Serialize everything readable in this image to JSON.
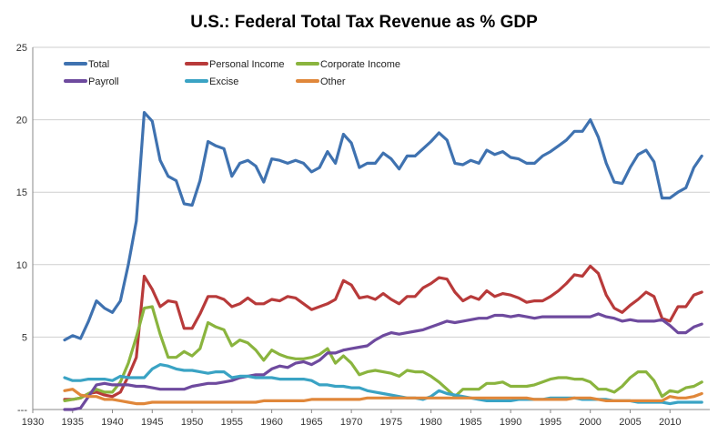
{
  "chart_data": {
    "type": "line",
    "title": "U.S.: Federal Total Tax Revenue as % GDP",
    "xlabel": "",
    "ylabel": "",
    "xlim": [
      1930,
      2015
    ],
    "ylim": [
      0,
      25
    ],
    "x_ticks": [
      1930,
      1935,
      1940,
      1945,
      1950,
      1955,
      1960,
      1965,
      1970,
      1975,
      1980,
      1985,
      1990,
      1995,
      2000,
      2005,
      2010
    ],
    "y_ticks": [
      0,
      5,
      10,
      15,
      20,
      25
    ],
    "y_tick_labels": [
      "---",
      "5",
      "10",
      "15",
      "20",
      "25"
    ],
    "grid": "horizontal",
    "legend_position": "top",
    "x": [
      1934,
      1935,
      1936,
      1937,
      1938,
      1939,
      1940,
      1941,
      1942,
      1943,
      1944,
      1945,
      1946,
      1947,
      1948,
      1949,
      1950,
      1951,
      1952,
      1953,
      1954,
      1955,
      1956,
      1957,
      1958,
      1959,
      1960,
      1961,
      1962,
      1963,
      1964,
      1965,
      1966,
      1967,
      1968,
      1969,
      1970,
      1971,
      1972,
      1973,
      1974,
      1975,
      1976,
      1977,
      1978,
      1979,
      1980,
      1981,
      1982,
      1983,
      1984,
      1985,
      1986,
      1987,
      1988,
      1989,
      1990,
      1991,
      1992,
      1993,
      1994,
      1995,
      1996,
      1997,
      1998,
      1999,
      2000,
      2001,
      2002,
      2003,
      2004,
      2005,
      2006,
      2007,
      2008,
      2009,
      2010,
      2011,
      2012,
      2013,
      2014
    ],
    "series": [
      {
        "name": "Total",
        "color": "#3f72b0",
        "values": [
          4.8,
          5.1,
          4.9,
          6.1,
          7.5,
          7.0,
          6.7,
          7.5,
          10.0,
          13.0,
          20.5,
          19.9,
          17.2,
          16.1,
          15.8,
          14.2,
          14.1,
          15.8,
          18.5,
          18.2,
          18.0,
          16.1,
          17.0,
          17.2,
          16.8,
          15.7,
          17.3,
          17.2,
          17.0,
          17.2,
          17.0,
          16.4,
          16.7,
          17.8,
          17.0,
          19.0,
          18.4,
          16.7,
          17.0,
          17.0,
          17.7,
          17.3,
          16.6,
          17.5,
          17.5,
          18.0,
          18.5,
          19.1,
          18.6,
          17.0,
          16.9,
          17.2,
          17.0,
          17.9,
          17.6,
          17.8,
          17.4,
          17.3,
          17.0,
          17.0,
          17.5,
          17.8,
          18.2,
          18.6,
          19.2,
          19.2,
          20.0,
          18.8,
          17.0,
          15.7,
          15.6,
          16.7,
          17.6,
          17.9,
          17.1,
          14.6,
          14.6,
          15.0,
          15.3,
          16.7,
          17.5
        ]
      },
      {
        "name": "Personal Income",
        "color": "#b83a3a",
        "values": [
          0.7,
          0.7,
          0.8,
          1.1,
          1.2,
          1.0,
          0.9,
          1.2,
          2.3,
          3.6,
          9.2,
          8.3,
          7.1,
          7.5,
          7.4,
          5.6,
          5.6,
          6.6,
          7.8,
          7.8,
          7.6,
          7.1,
          7.3,
          7.7,
          7.3,
          7.3,
          7.6,
          7.5,
          7.8,
          7.7,
          7.3,
          6.9,
          7.1,
          7.3,
          7.6,
          8.9,
          8.6,
          7.7,
          7.8,
          7.6,
          8.0,
          7.6,
          7.3,
          7.8,
          7.8,
          8.4,
          8.7,
          9.1,
          9.0,
          8.1,
          7.5,
          7.8,
          7.6,
          8.2,
          7.8,
          8.0,
          7.9,
          7.7,
          7.4,
          7.5,
          7.5,
          7.8,
          8.2,
          8.7,
          9.3,
          9.2,
          9.9,
          9.4,
          7.9,
          7.0,
          6.7,
          7.2,
          7.6,
          8.1,
          7.8,
          6.3,
          6.1,
          7.1,
          7.1,
          7.9,
          8.1
        ]
      },
      {
        "name": "Corporate Income",
        "color": "#8ab43e",
        "values": [
          0.6,
          0.7,
          0.8,
          1.1,
          1.4,
          1.2,
          1.2,
          1.9,
          3.2,
          5.0,
          7.0,
          7.1,
          5.2,
          3.6,
          3.6,
          4.0,
          3.7,
          4.2,
          6.0,
          5.7,
          5.5,
          4.4,
          4.8,
          4.6,
          4.1,
          3.4,
          4.1,
          3.8,
          3.6,
          3.5,
          3.5,
          3.6,
          3.8,
          4.2,
          3.2,
          3.7,
          3.2,
          2.4,
          2.6,
          2.7,
          2.6,
          2.5,
          2.3,
          2.7,
          2.6,
          2.6,
          2.3,
          1.9,
          1.4,
          0.9,
          1.4,
          1.4,
          1.4,
          1.8,
          1.8,
          1.9,
          1.6,
          1.6,
          1.6,
          1.7,
          1.9,
          2.1,
          2.2,
          2.2,
          2.1,
          2.1,
          1.9,
          1.4,
          1.4,
          1.2,
          1.6,
          2.2,
          2.6,
          2.6,
          2.0,
          0.9,
          1.3,
          1.2,
          1.5,
          1.6,
          1.9
        ]
      },
      {
        "name": "Payroll",
        "color": "#6e4a9e",
        "values": [
          0.0,
          0.0,
          0.1,
          0.9,
          1.7,
          1.8,
          1.7,
          1.7,
          1.7,
          1.6,
          1.6,
          1.5,
          1.4,
          1.4,
          1.4,
          1.4,
          1.6,
          1.7,
          1.8,
          1.8,
          1.9,
          2.0,
          2.2,
          2.3,
          2.4,
          2.4,
          2.8,
          3.0,
          2.9,
          3.2,
          3.3,
          3.1,
          3.4,
          3.9,
          3.9,
          4.1,
          4.2,
          4.3,
          4.4,
          4.8,
          5.1,
          5.3,
          5.2,
          5.3,
          5.4,
          5.5,
          5.7,
          5.9,
          6.1,
          6.0,
          6.1,
          6.2,
          6.3,
          6.3,
          6.5,
          6.5,
          6.4,
          6.5,
          6.4,
          6.3,
          6.4,
          6.4,
          6.4,
          6.4,
          6.4,
          6.4,
          6.4,
          6.6,
          6.4,
          6.3,
          6.1,
          6.2,
          6.1,
          6.1,
          6.1,
          6.2,
          5.8,
          5.3,
          5.3,
          5.7,
          5.9
        ]
      },
      {
        "name": "Excise",
        "color": "#3aa3c4",
        "values": [
          2.2,
          2.0,
          2.0,
          2.1,
          2.1,
          2.1,
          2.0,
          2.3,
          2.2,
          2.2,
          2.2,
          2.8,
          3.1,
          3.0,
          2.8,
          2.7,
          2.7,
          2.6,
          2.5,
          2.6,
          2.6,
          2.2,
          2.3,
          2.3,
          2.2,
          2.2,
          2.2,
          2.1,
          2.1,
          2.1,
          2.1,
          2.0,
          1.7,
          1.7,
          1.6,
          1.6,
          1.5,
          1.5,
          1.3,
          1.2,
          1.1,
          1.0,
          0.9,
          0.8,
          0.8,
          0.7,
          0.9,
          1.3,
          1.1,
          1.0,
          0.9,
          0.8,
          0.7,
          0.6,
          0.6,
          0.6,
          0.6,
          0.7,
          0.7,
          0.7,
          0.7,
          0.8,
          0.8,
          0.8,
          0.8,
          0.7,
          0.7,
          0.7,
          0.7,
          0.6,
          0.6,
          0.6,
          0.5,
          0.5,
          0.5,
          0.5,
          0.4,
          0.5,
          0.5,
          0.5,
          0.5
        ]
      },
      {
        "name": "Other",
        "color": "#e0873a",
        "values": [
          1.3,
          1.4,
          1.0,
          0.9,
          0.9,
          0.7,
          0.7,
          0.6,
          0.5,
          0.4,
          0.4,
          0.5,
          0.5,
          0.5,
          0.5,
          0.5,
          0.5,
          0.5,
          0.5,
          0.5,
          0.5,
          0.5,
          0.5,
          0.5,
          0.5,
          0.6,
          0.6,
          0.6,
          0.6,
          0.6,
          0.6,
          0.7,
          0.7,
          0.7,
          0.7,
          0.7,
          0.7,
          0.7,
          0.8,
          0.8,
          0.8,
          0.8,
          0.8,
          0.8,
          0.8,
          0.8,
          0.8,
          0.8,
          0.8,
          0.8,
          0.8,
          0.8,
          0.8,
          0.8,
          0.8,
          0.8,
          0.8,
          0.8,
          0.8,
          0.7,
          0.7,
          0.7,
          0.7,
          0.7,
          0.8,
          0.8,
          0.8,
          0.7,
          0.6,
          0.6,
          0.6,
          0.6,
          0.6,
          0.6,
          0.6,
          0.6,
          0.9,
          0.8,
          0.8,
          0.9,
          1.1
        ]
      }
    ]
  }
}
